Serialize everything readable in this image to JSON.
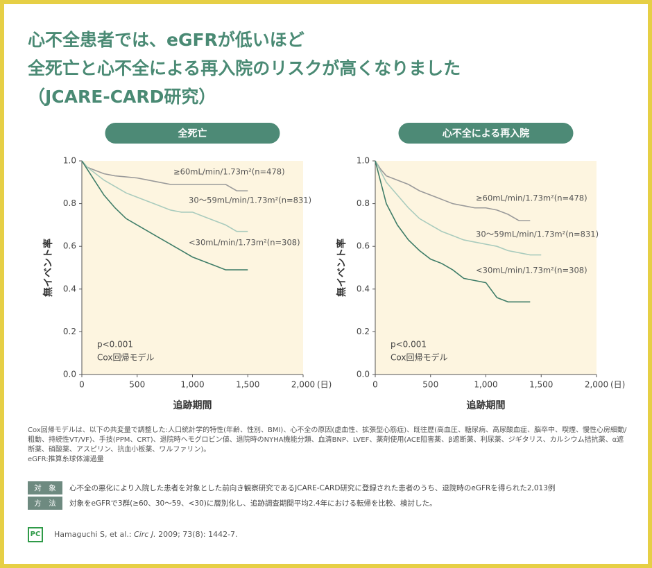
{
  "page_title": [
    "心不全患者では、eGFRが低いほど",
    "全死亡と心不全による再入院のリスクが高くなりました",
    "（JCARE-CARD研究）"
  ],
  "chart_data": [
    {
      "type": "line",
      "title": "全死亡",
      "x_label": "追跡期間",
      "x_unit": "(日)",
      "y_label": "無イベント率",
      "annotations": [
        "p<0.001",
        "Cox回帰モデル"
      ],
      "x": [
        0,
        50,
        100,
        200,
        300,
        400,
        500,
        600,
        700,
        800,
        900,
        1000,
        1100,
        1200,
        1300,
        1400,
        1500
      ],
      "series": [
        {
          "name": "≥60mL/min/1.73m²(n=478)",
          "color": "#9a9a9a",
          "values": [
            1,
            0.97,
            0.96,
            0.94,
            0.93,
            0.925,
            0.92,
            0.91,
            0.9,
            0.89,
            0.89,
            0.89,
            0.89,
            0.89,
            0.89,
            0.86,
            0.86
          ]
        },
        {
          "name": "30～59mL/min/1.73m²(n=831)",
          "color": "#a9cbbd",
          "values": [
            1,
            0.97,
            0.95,
            0.91,
            0.88,
            0.85,
            0.83,
            0.81,
            0.79,
            0.77,
            0.76,
            0.76,
            0.74,
            0.72,
            0.7,
            0.67,
            0.67
          ]
        },
        {
          "name": "<30mL/min/1.73m²(n=308)",
          "color": "#3f7d68",
          "values": [
            1,
            0.96,
            0.92,
            0.84,
            0.78,
            0.73,
            0.7,
            0.67,
            0.64,
            0.61,
            0.58,
            0.55,
            0.53,
            0.51,
            0.49,
            0.49,
            0.49
          ]
        }
      ],
      "xlim": [
        0,
        2000
      ],
      "ylim": [
        0,
        1
      ],
      "xticks": [
        0,
        500,
        {
          "value": 1000,
          "label": "1,000"
        },
        {
          "value": 1500,
          "label": "1,500"
        },
        {
          "value": 2000,
          "label": "2,000"
        }
      ],
      "yticks": [
        {
          "value": 0,
          "label": "0.0"
        },
        0.2,
        0.4,
        0.6,
        0.8,
        {
          "value": 1,
          "label": "1.0"
        }
      ]
    },
    {
      "type": "line",
      "title": "心不全による再入院",
      "x_label": "追跡期間",
      "x_unit": "(日)",
      "y_label": "無イベント率",
      "annotations": [
        "p<0.001",
        "Cox回帰モデル"
      ],
      "x": [
        0,
        50,
        100,
        200,
        300,
        400,
        500,
        600,
        700,
        800,
        900,
        1000,
        1100,
        1200,
        1300,
        1400,
        1500
      ],
      "series": [
        {
          "name": "≥60mL/min/1.73m²(n=478)",
          "color": "#9a9a9a",
          "values": [
            1,
            0.96,
            0.93,
            0.91,
            0.89,
            0.86,
            0.84,
            0.82,
            0.8,
            0.79,
            0.78,
            0.78,
            0.77,
            0.75,
            0.72,
            0.72,
            null
          ]
        },
        {
          "name": "30～59mL/min/1.73m²(n=831)",
          "color": "#a9cbbd",
          "values": [
            1,
            0.95,
            0.9,
            0.84,
            0.78,
            0.73,
            0.7,
            0.67,
            0.65,
            0.63,
            0.62,
            0.61,
            0.6,
            0.58,
            0.57,
            0.56,
            0.56
          ]
        },
        {
          "name": "<30mL/min/1.73m²(n=308)",
          "color": "#3f7d68",
          "values": [
            1,
            0.9,
            0.8,
            0.7,
            0.63,
            0.58,
            0.54,
            0.52,
            0.49,
            0.45,
            0.44,
            0.43,
            0.36,
            0.34,
            0.34,
            0.34,
            null
          ]
        }
      ],
      "xlim": [
        0,
        2000
      ],
      "ylim": [
        0,
        1
      ],
      "xticks": [
        0,
        500,
        {
          "value": 1000,
          "label": "1,000"
        },
        {
          "value": 1500,
          "label": "1,500"
        },
        {
          "value": 2000,
          "label": "2,000"
        }
      ],
      "yticks": [
        {
          "value": 0,
          "label": "0.0"
        },
        0.2,
        0.4,
        0.6,
        0.8,
        {
          "value": 1,
          "label": "1.0"
        }
      ]
    }
  ],
  "footnote": [
    "Cox回帰モデルは、以下の共変量で調整した:人口統計学的特性(年齢、性別、BMI)、心不全の原因(虚血性、拡張型心筋症)、既往歴(高血圧、糖尿病、高尿酸血症、脳卒中、喫煙、慢性心房細動/粗動、持続性VT/VF)、手技(PPM、CRT)、退院時ヘモグロビン値、退院時のNYHA機能分類、血清BNP、LVEF、薬剤使用(ACE阻害薬、β遮断薬、利尿薬、ジギタリス、カルシウム拮抗薬、α遮断薬、硝酸薬、アスピリン、抗血小板薬、ワルファリン)。",
    "eGFR:推算糸球体濾過量"
  ],
  "subject": {
    "label": "対　象",
    "text": "心不全の悪化により入院した患者を対象とした前向き観察研究であるJCARE-CARD研究に登録された患者のうち、退院時のeGFRを得られた2,013例"
  },
  "method": {
    "label": "方　法",
    "text": "対象をeGFRで3群(≥60、30～59、<30)に層別化し、追跡調査期間平均2.4年における転帰を比較、検討した。"
  },
  "logo": "PC",
  "citation": [
    "Hamaguchi S, et al.: ",
    "Circ J.",
    " 2009; 73(8): 1442-7."
  ]
}
